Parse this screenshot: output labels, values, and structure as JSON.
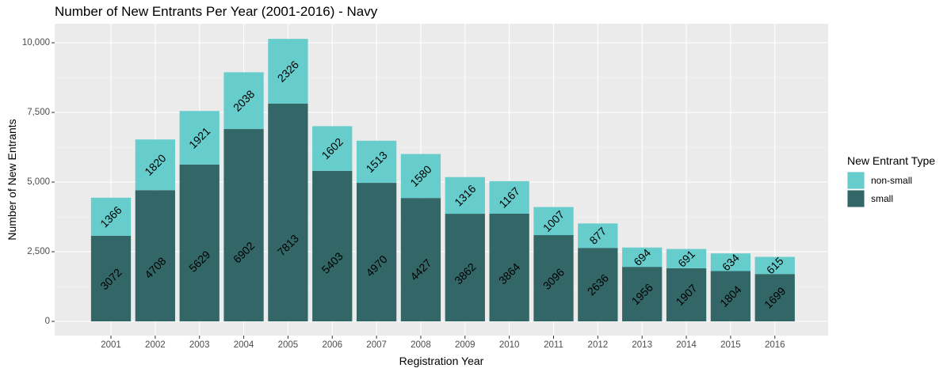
{
  "chart_data": {
    "type": "bar",
    "stacked": true,
    "title": "Number of New Entrants Per Year (2001-2016) - Navy",
    "xlabel": "Registration Year",
    "ylabel": "Number of New Entrants",
    "categories": [
      "2001",
      "2002",
      "2003",
      "2004",
      "2005",
      "2006",
      "2007",
      "2008",
      "2009",
      "2010",
      "2011",
      "2012",
      "2013",
      "2014",
      "2015",
      "2016"
    ],
    "series": [
      {
        "name": "small",
        "color": "#336666",
        "values": [
          3072,
          4708,
          5629,
          6902,
          7813,
          5403,
          4970,
          4427,
          3862,
          3864,
          3096,
          2636,
          1956,
          1907,
          1804,
          1699
        ]
      },
      {
        "name": "non-small",
        "color": "#66cccc",
        "values": [
          1366,
          1820,
          1921,
          2038,
          2326,
          1602,
          1513,
          1580,
          1316,
          1167,
          1007,
          877,
          694,
          691,
          634,
          615
        ]
      }
    ],
    "ylim": [
      0,
      10500
    ],
    "yticks": [
      0,
      2500,
      5000,
      7500,
      10000
    ],
    "ytick_labels": [
      "0",
      "2,500",
      "5,000",
      "7,500",
      "10,000"
    ],
    "legend": {
      "title": "New Entrant Type",
      "position": "right",
      "items": [
        {
          "label": "non-small",
          "color": "#66cccc"
        },
        {
          "label": "small",
          "color": "#336666"
        }
      ]
    },
    "grid": true,
    "panel_background": "#ebebeb"
  }
}
